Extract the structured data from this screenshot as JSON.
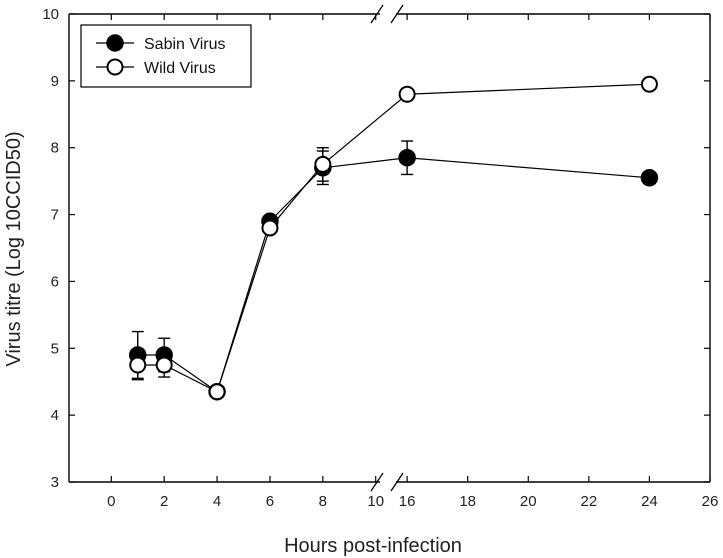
{
  "chart_data": {
    "type": "line",
    "xlabel": "Hours post-infection",
    "ylabel": "Virus titre (Log 10CCID50)",
    "ylim": [
      3,
      10
    ],
    "yticks": [
      "3",
      "4",
      "5",
      "6",
      "7",
      "8",
      "9",
      "10"
    ],
    "x_segments": [
      {
        "xlim": [
          -1.6,
          10.2
        ],
        "ticks": [
          "0",
          "2",
          "4",
          "6",
          "8",
          "10"
        ]
      },
      {
        "xlim": [
          15.6,
          26
        ],
        "ticks": [
          "16",
          "18",
          "20",
          "22",
          "24",
          "26"
        ]
      }
    ],
    "axis_break": "x between 10 and 16",
    "legend_position": "top-left",
    "series": [
      {
        "name": "Sabin Virus",
        "marker": "filled-circle",
        "x": [
          1,
          2,
          4,
          6,
          8,
          16,
          24
        ],
        "y": [
          4.9,
          4.9,
          4.35,
          6.9,
          7.7,
          7.85,
          7.55
        ],
        "error": [
          0.35,
          0.25,
          null,
          null,
          0.25,
          0.25,
          null
        ]
      },
      {
        "name": "Wild Virus",
        "marker": "open-circle",
        "x": [
          1,
          2,
          4,
          6,
          8,
          16,
          24
        ],
        "y": [
          4.75,
          4.75,
          4.35,
          6.8,
          7.75,
          8.8,
          8.95
        ],
        "error": [
          0.22,
          0.18,
          null,
          null,
          0.25,
          null,
          null
        ]
      }
    ]
  }
}
